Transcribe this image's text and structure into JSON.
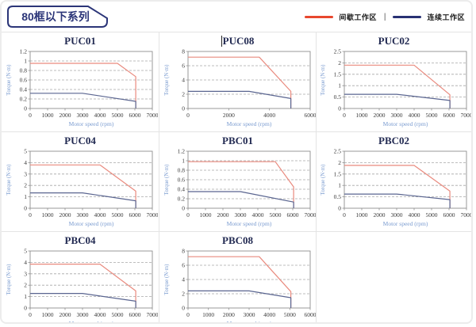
{
  "page": {
    "title": "80框以下系列"
  },
  "legend": {
    "items": [
      {
        "label": "间歇工作区",
        "color": "#e8472e"
      },
      {
        "label": "连续工作区",
        "color": "#283173"
      }
    ],
    "separator": "|"
  },
  "axis_labels": {
    "x": "Motor speed (rpm)",
    "y": "Torque (N·m)"
  },
  "colors": {
    "intermittent_curve": "#e98a7e",
    "continuous_curve": "#5a6590",
    "grid_line": "#a8a8a8",
    "plot_border": "#8f8f8f",
    "tick_text": "#3a3a3a",
    "axis_label_text": "#7b9cd0",
    "chart_title_text": "#222a52",
    "header_navy": "#2b3578"
  },
  "chart_data": [
    {
      "type": "line",
      "title": "PUC01",
      "caret": false,
      "xlabel": "Motor speed (rpm)",
      "ylabel": "Torque (N·m)",
      "xlim": [
        0,
        7000
      ],
      "ylim": [
        0,
        1.2
      ],
      "xticks": [
        0,
        1000,
        2000,
        3000,
        4000,
        5000,
        6000,
        7000
      ],
      "yticks": [
        0,
        0.2,
        0.4,
        0.6,
        0.8,
        1,
        1.2
      ],
      "series": [
        {
          "name": "间歇工作区",
          "color_key": "intermittent_curve",
          "points": [
            [
              0,
              0.95
            ],
            [
              5000,
              0.95
            ],
            [
              6050,
              0.67
            ],
            [
              6050,
              0
            ]
          ]
        },
        {
          "name": "连续工作区",
          "color_key": "continuous_curve",
          "points": [
            [
              0,
              0.32
            ],
            [
              3000,
              0.32
            ],
            [
              6050,
              0.15
            ],
            [
              6050,
              0
            ]
          ]
        }
      ]
    },
    {
      "type": "line",
      "title": "PUC08",
      "caret": true,
      "xlabel": "Motor speed (rpm)",
      "ylabel": "Torque (N·m)",
      "xlim": [
        0,
        6000
      ],
      "ylim": [
        0,
        8
      ],
      "xticks": [
        0,
        2000,
        4000,
        6000
      ],
      "yticks": [
        0,
        2,
        4,
        6,
        8
      ],
      "series": [
        {
          "name": "间歇工作区",
          "color_key": "intermittent_curve",
          "points": [
            [
              0,
              7.2
            ],
            [
              3500,
              7.2
            ],
            [
              5050,
              2.4
            ],
            [
              5050,
              0
            ]
          ]
        },
        {
          "name": "连续工作区",
          "color_key": "continuous_curve",
          "points": [
            [
              0,
              2.4
            ],
            [
              3000,
              2.4
            ],
            [
              5050,
              1.4
            ],
            [
              5050,
              0
            ]
          ]
        }
      ]
    },
    {
      "type": "line",
      "title": "PUC02",
      "caret": false,
      "xlabel": "Motor speed (rpm)",
      "ylabel": "Torque (N·m)",
      "xlim": [
        0,
        7000
      ],
      "ylim": [
        0,
        2.5
      ],
      "xticks": [
        0,
        1000,
        2000,
        3000,
        4000,
        5000,
        6000,
        7000
      ],
      "yticks": [
        0,
        0.5,
        1,
        1.5,
        2,
        2.5
      ],
      "series": [
        {
          "name": "间歇工作区",
          "color_key": "intermittent_curve",
          "points": [
            [
              0,
              1.9
            ],
            [
              4000,
              1.9
            ],
            [
              6050,
              0.6
            ],
            [
              6050,
              0
            ]
          ]
        },
        {
          "name": "连续工作区",
          "color_key": "continuous_curve",
          "points": [
            [
              0,
              0.62
            ],
            [
              3000,
              0.62
            ],
            [
              6050,
              0.35
            ],
            [
              6050,
              0
            ]
          ]
        }
      ]
    },
    {
      "type": "line",
      "title": "PUC04",
      "caret": false,
      "xlabel": "Motor speed (rpm)",
      "ylabel": "Torque (N·m)",
      "xlim": [
        0,
        7000
      ],
      "ylim": [
        0,
        5
      ],
      "xticks": [
        0,
        1000,
        2000,
        3000,
        4000,
        5000,
        6000,
        7000
      ],
      "yticks": [
        0,
        1,
        2,
        3,
        4,
        5
      ],
      "series": [
        {
          "name": "间歇工作区",
          "color_key": "intermittent_curve",
          "points": [
            [
              0,
              3.8
            ],
            [
              4000,
              3.8
            ],
            [
              6050,
              1.5
            ],
            [
              6050,
              0
            ]
          ]
        },
        {
          "name": "连续工作区",
          "color_key": "continuous_curve",
          "points": [
            [
              0,
              1.35
            ],
            [
              3000,
              1.35
            ],
            [
              6050,
              0.65
            ],
            [
              6050,
              0
            ]
          ]
        }
      ]
    },
    {
      "type": "line",
      "title": "PBC01",
      "caret": false,
      "xlabel": "Motor speed (rpm)",
      "ylabel": "Torque (N·m)",
      "xlim": [
        0,
        7000
      ],
      "ylim": [
        0,
        1.2
      ],
      "xticks": [
        0,
        1000,
        2000,
        3000,
        4000,
        5000,
        6000,
        7000
      ],
      "yticks": [
        0,
        0.2,
        0.4,
        0.6,
        0.8,
        1,
        1.2
      ],
      "series": [
        {
          "name": "间歇工作区",
          "color_key": "intermittent_curve",
          "points": [
            [
              0,
              0.98
            ],
            [
              5000,
              0.98
            ],
            [
              6050,
              0.45
            ],
            [
              6050,
              0
            ]
          ]
        },
        {
          "name": "连续工作区",
          "color_key": "continuous_curve",
          "points": [
            [
              0,
              0.35
            ],
            [
              3000,
              0.35
            ],
            [
              6050,
              0.13
            ],
            [
              6050,
              0
            ]
          ]
        }
      ]
    },
    {
      "type": "line",
      "title": "PBC02",
      "caret": false,
      "xlabel": "Motor speed (rpm)",
      "ylabel": "Torque (N·m)",
      "xlim": [
        0,
        7000
      ],
      "ylim": [
        0,
        2.5
      ],
      "xticks": [
        0,
        1000,
        2000,
        3000,
        4000,
        5000,
        6000,
        7000
      ],
      "yticks": [
        0,
        0.5,
        1,
        1.5,
        2,
        2.5
      ],
      "series": [
        {
          "name": "间歇工作区",
          "color_key": "intermittent_curve",
          "points": [
            [
              0,
              1.88
            ],
            [
              4000,
              1.88
            ],
            [
              6050,
              0.75
            ],
            [
              6050,
              0
            ]
          ]
        },
        {
          "name": "连续工作区",
          "color_key": "continuous_curve",
          "points": [
            [
              0,
              0.62
            ],
            [
              3000,
              0.62
            ],
            [
              6050,
              0.38
            ],
            [
              6050,
              0
            ]
          ]
        }
      ]
    },
    {
      "type": "line",
      "title": "PBC04",
      "caret": false,
      "xlabel": "Motor speed (rpm)",
      "ylabel": "Torque (N·m)",
      "xlim": [
        0,
        7000
      ],
      "ylim": [
        0,
        5
      ],
      "xticks": [
        0,
        1000,
        2000,
        3000,
        4000,
        5000,
        6000,
        7000
      ],
      "yticks": [
        0,
        1,
        2,
        3,
        4,
        5
      ],
      "series": [
        {
          "name": "间歇工作区",
          "color_key": "intermittent_curve",
          "points": [
            [
              0,
              3.85
            ],
            [
              4000,
              3.85
            ],
            [
              6050,
              1.5
            ],
            [
              6050,
              0
            ]
          ]
        },
        {
          "name": "连续工作区",
          "color_key": "continuous_curve",
          "points": [
            [
              0,
              1.28
            ],
            [
              3000,
              1.28
            ],
            [
              6050,
              0.6
            ],
            [
              6050,
              0
            ]
          ]
        }
      ]
    },
    {
      "type": "line",
      "title": "PBC08",
      "caret": false,
      "xlabel": "Motor speed (rpm)",
      "ylabel": "Torque (N·m)",
      "xlim": [
        0,
        6000
      ],
      "ylim": [
        0,
        8
      ],
      "xticks": [
        0,
        1000,
        2000,
        3000,
        4000,
        5000,
        6000
      ],
      "yticks": [
        0,
        2,
        4,
        6,
        8
      ],
      "series": [
        {
          "name": "间歇工作区",
          "color_key": "intermittent_curve",
          "points": [
            [
              0,
              7.2
            ],
            [
              3500,
              7.2
            ],
            [
              5050,
              2.3
            ],
            [
              5050,
              0
            ]
          ]
        },
        {
          "name": "连续工作区",
          "color_key": "continuous_curve",
          "points": [
            [
              0,
              2.4
            ],
            [
              3000,
              2.4
            ],
            [
              5050,
              1.45
            ],
            [
              5050,
              0
            ]
          ]
        }
      ]
    }
  ]
}
